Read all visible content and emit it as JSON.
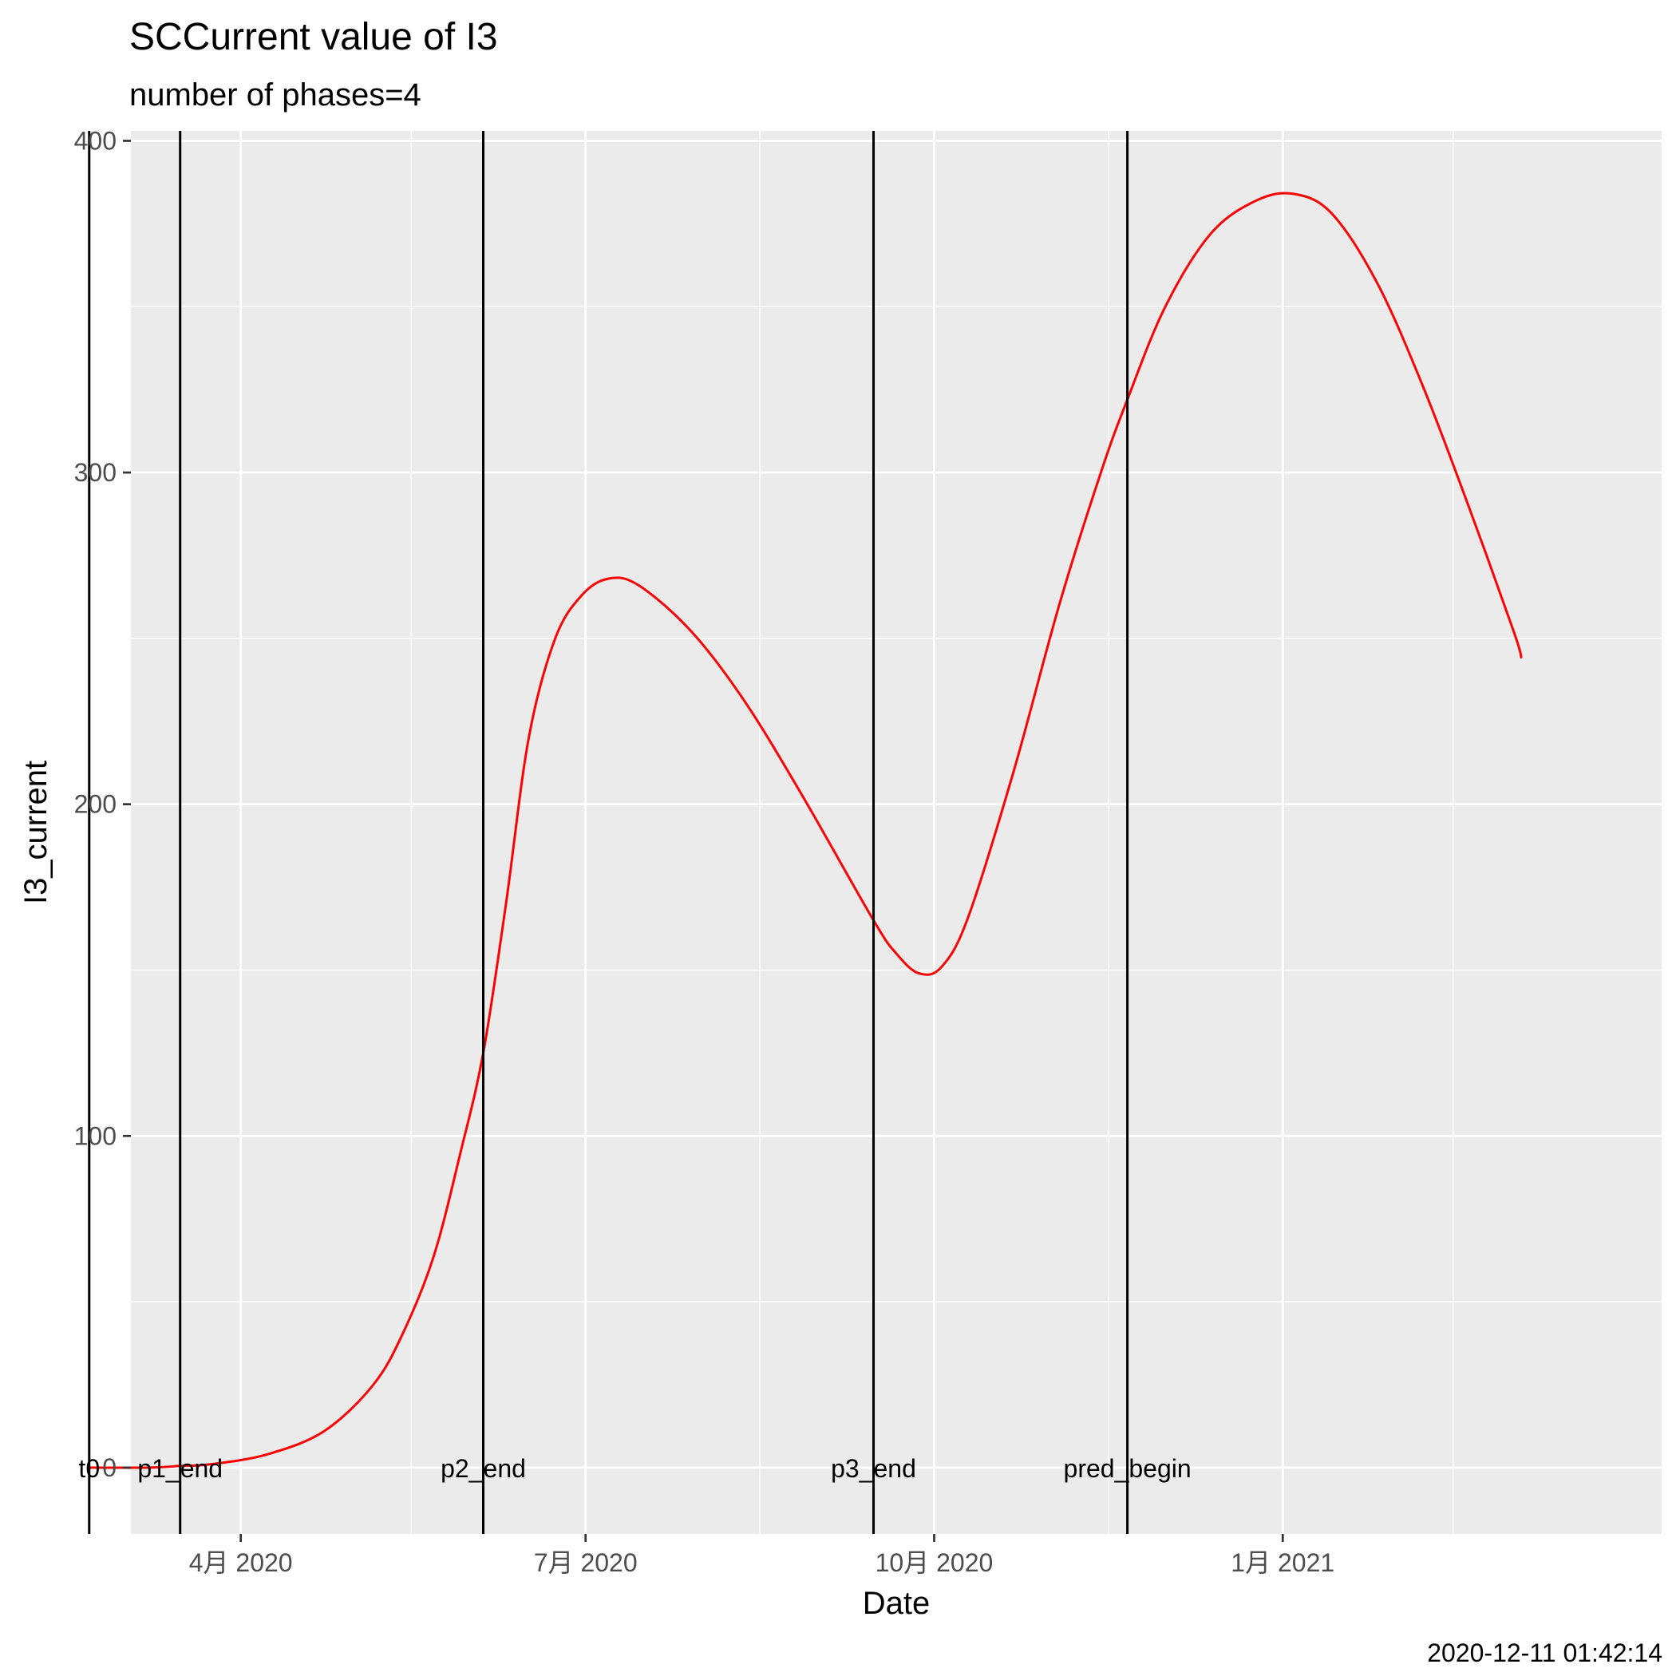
{
  "chart_data": {
    "type": "line",
    "title": "SCCurrent value of I3",
    "subtitle": "number of phases=4",
    "xlabel": "Date",
    "ylabel": "I3_current",
    "caption": "2020-12-11 01:42:14",
    "ylim": [
      -20,
      403
    ],
    "xlim": [
      "2020-03-03",
      "2021-04-11"
    ],
    "y_ticks": [
      0,
      100,
      200,
      300,
      400
    ],
    "x_ticks": [
      {
        "date": "2020-04-01",
        "label": "4月 2020"
      },
      {
        "date": "2020-07-01",
        "label": "7月 2020"
      },
      {
        "date": "2020-10-01",
        "label": "10月 2020"
      },
      {
        "date": "2021-01-01",
        "label": "1月 2021"
      }
    ],
    "x_minor": [
      "2020-02-15",
      "2020-05-16",
      "2020-08-16",
      "2020-11-16",
      "2021-02-15"
    ],
    "grid": true,
    "colors": {
      "line": "#ff0000",
      "panel": "#ebebeb",
      "grid": "#ffffff",
      "vline": "#000000"
    },
    "vlines": [
      {
        "date": "2020-02-21",
        "label": "t0"
      },
      {
        "date": "2020-03-16",
        "label": "p1_end"
      },
      {
        "date": "2020-06-04",
        "label": "p2_end"
      },
      {
        "date": "2020-09-15",
        "label": "p3_end"
      },
      {
        "date": "2020-11-21",
        "label": "pred_begin"
      }
    ],
    "series": [
      {
        "values": [
          {
            "x": "2020-02-21",
            "y": 0
          },
          {
            "x": "2020-03-08",
            "y": 0
          },
          {
            "x": "2020-03-16",
            "y": 0.5
          },
          {
            "x": "2020-03-24",
            "y": 1
          },
          {
            "x": "2020-04-08",
            "y": 4
          },
          {
            "x": "2020-04-23",
            "y": 11
          },
          {
            "x": "2020-05-06",
            "y": 25
          },
          {
            "x": "2020-05-14",
            "y": 41
          },
          {
            "x": "2020-05-22",
            "y": 64
          },
          {
            "x": "2020-05-29",
            "y": 95
          },
          {
            "x": "2020-06-04",
            "y": 125
          },
          {
            "x": "2020-06-10",
            "y": 170
          },
          {
            "x": "2020-06-16",
            "y": 220
          },
          {
            "x": "2020-06-23",
            "y": 250
          },
          {
            "x": "2020-06-30",
            "y": 263
          },
          {
            "x": "2020-07-07",
            "y": 268
          },
          {
            "x": "2020-07-15",
            "y": 266
          },
          {
            "x": "2020-07-29",
            "y": 252
          },
          {
            "x": "2020-08-12",
            "y": 231
          },
          {
            "x": "2020-08-27",
            "y": 203
          },
          {
            "x": "2020-09-15",
            "y": 165
          },
          {
            "x": "2020-09-21",
            "y": 155
          },
          {
            "x": "2020-09-27",
            "y": 149
          },
          {
            "x": "2020-10-03",
            "y": 151
          },
          {
            "x": "2020-10-10",
            "y": 166
          },
          {
            "x": "2020-10-22",
            "y": 210
          },
          {
            "x": "2020-11-03",
            "y": 260
          },
          {
            "x": "2020-11-14",
            "y": 300
          },
          {
            "x": "2020-11-21",
            "y": 322
          },
          {
            "x": "2020-12-01",
            "y": 350
          },
          {
            "x": "2020-12-13",
            "y": 372
          },
          {
            "x": "2020-12-25",
            "y": 382
          },
          {
            "x": "2021-01-04",
            "y": 384
          },
          {
            "x": "2021-01-14",
            "y": 378
          },
          {
            "x": "2021-01-26",
            "y": 357
          },
          {
            "x": "2021-02-07",
            "y": 326
          },
          {
            "x": "2021-02-19",
            "y": 290
          },
          {
            "x": "2021-03-03",
            "y": 252
          },
          {
            "x": "2021-03-05",
            "y": 244
          }
        ]
      }
    ]
  }
}
